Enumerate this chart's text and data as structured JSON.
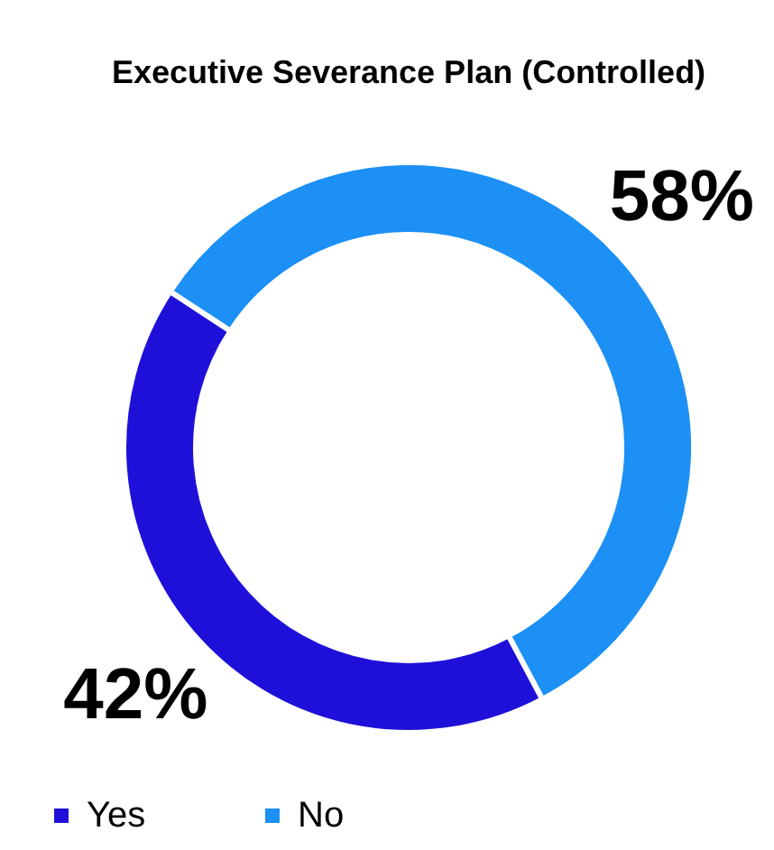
{
  "chart_data": {
    "type": "donut",
    "title": "Executive Severance Plan\n(Controlled)",
    "categories": [
      "Yes",
      "No"
    ],
    "values": [
      42,
      58
    ],
    "colors": [
      "#1e10d8",
      "#1c90f5"
    ],
    "value_labels": [
      "42%",
      "58%"
    ],
    "legend": "bottom"
  }
}
